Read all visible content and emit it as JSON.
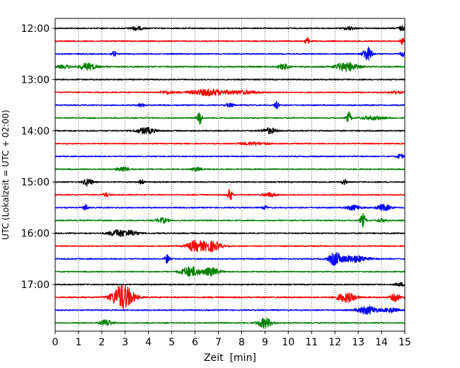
{
  "chart_data": {
    "type": "line",
    "title": "",
    "xlabel": "Zeit  [min]",
    "ylabel": "UTC (Lokalzeit = UTC + 02:00)",
    "xlim": [
      0,
      15
    ],
    "x_ticks": [
      "0",
      "1",
      "2",
      "3",
      "4",
      "5",
      "6",
      "7",
      "8",
      "9",
      "10",
      "11",
      "12",
      "13",
      "14",
      "15"
    ],
    "y_tick_labels": [
      "12:00",
      "13:00",
      "14:00",
      "15:00",
      "16:00",
      "17:00"
    ],
    "row_start": "12:00",
    "row_interval_min": 15,
    "grid": "vertical-dotted",
    "colors": [
      "#000000",
      "#ff0000",
      "#0000ff",
      "#008000"
    ],
    "rows": [
      {
        "t": "12:00",
        "color": "#000000",
        "amp": 0.1,
        "events": [
          [
            3.5,
            0.35,
            0.25
          ],
          [
            12.6,
            0.3,
            0.25
          ],
          [
            14.9,
            0.4,
            0.2
          ]
        ]
      },
      {
        "t": "12:15",
        "color": "#ff0000",
        "amp": 0.1,
        "events": [
          [
            10.8,
            0.6,
            0.1
          ],
          [
            14.9,
            0.6,
            0.1
          ]
        ]
      },
      {
        "t": "12:30",
        "color": "#0000ff",
        "amp": 0.1,
        "events": [
          [
            2.5,
            0.6,
            0.1
          ],
          [
            13.4,
            1.2,
            0.2
          ],
          [
            14.9,
            0.4,
            0.1
          ]
        ]
      },
      {
        "t": "12:45",
        "color": "#008000",
        "amp": 0.12,
        "events": [
          [
            0.4,
            0.25,
            0.3
          ],
          [
            1.4,
            0.6,
            0.35
          ],
          [
            9.8,
            0.5,
            0.2
          ],
          [
            12.5,
            0.8,
            0.45
          ]
        ]
      },
      {
        "t": "13:00",
        "color": "#000000",
        "amp": 0.1,
        "events": []
      },
      {
        "t": "13:15",
        "color": "#ff0000",
        "amp": 0.1,
        "events": [
          [
            4.8,
            0.25,
            0.3
          ],
          [
            6.6,
            0.55,
            0.8
          ],
          [
            8.1,
            0.3,
            0.6
          ],
          [
            14.6,
            0.2,
            0.3
          ]
        ]
      },
      {
        "t": "13:30",
        "color": "#0000ff",
        "amp": 0.1,
        "events": [
          [
            3.7,
            0.3,
            0.15
          ],
          [
            7.5,
            0.3,
            0.2
          ],
          [
            9.5,
            0.7,
            0.1
          ]
        ]
      },
      {
        "t": "13:45",
        "color": "#008000",
        "amp": 0.1,
        "events": [
          [
            6.2,
            1.2,
            0.1
          ],
          [
            12.6,
            1.0,
            0.1
          ],
          [
            13.6,
            0.3,
            0.5
          ]
        ]
      },
      {
        "t": "14:00",
        "color": "#000000",
        "amp": 0.1,
        "events": [
          [
            3.9,
            0.55,
            0.4
          ],
          [
            9.2,
            0.5,
            0.3
          ]
        ]
      },
      {
        "t": "14:15",
        "color": "#ff0000",
        "amp": 0.1,
        "events": [
          [
            8.5,
            0.25,
            0.6
          ]
        ]
      },
      {
        "t": "14:30",
        "color": "#0000ff",
        "amp": 0.1,
        "events": [
          [
            14.8,
            0.4,
            0.15
          ]
        ]
      },
      {
        "t": "14:45",
        "color": "#008000",
        "amp": 0.1,
        "events": [
          [
            2.9,
            0.45,
            0.25
          ],
          [
            6.1,
            0.3,
            0.2
          ]
        ]
      },
      {
        "t": "15:00",
        "color": "#000000",
        "amp": 0.1,
        "events": [
          [
            1.4,
            0.7,
            0.2
          ],
          [
            3.7,
            0.4,
            0.1
          ],
          [
            12.4,
            0.5,
            0.1
          ]
        ]
      },
      {
        "t": "15:15",
        "color": "#ff0000",
        "amp": 0.1,
        "events": [
          [
            2.2,
            0.3,
            0.15
          ],
          [
            7.5,
            1.1,
            0.1
          ],
          [
            9.2,
            0.35,
            0.3
          ]
        ]
      },
      {
        "t": "15:30",
        "color": "#0000ff",
        "amp": 0.1,
        "events": [
          [
            1.3,
            0.5,
            0.1
          ],
          [
            9.0,
            0.35,
            0.1
          ],
          [
            12.8,
            0.45,
            0.3
          ],
          [
            14.1,
            0.55,
            0.3
          ]
        ]
      },
      {
        "t": "15:45",
        "color": "#008000",
        "amp": 0.1,
        "events": [
          [
            4.6,
            0.45,
            0.25
          ],
          [
            13.2,
            1.3,
            0.1
          ],
          [
            14.0,
            0.3,
            0.2
          ]
        ]
      },
      {
        "t": "16:00",
        "color": "#000000",
        "amp": 0.1,
        "events": [
          [
            2.7,
            0.6,
            0.4
          ],
          [
            3.3,
            0.4,
            0.3
          ]
        ]
      },
      {
        "t": "16:15",
        "color": "#ff0000",
        "amp": 0.1,
        "events": [
          [
            6.0,
            0.9,
            0.35
          ],
          [
            6.7,
            0.9,
            0.4
          ]
        ]
      },
      {
        "t": "16:30",
        "color": "#0000ff",
        "amp": 0.1,
        "events": [
          [
            4.8,
            0.8,
            0.1
          ],
          [
            12.0,
            1.1,
            0.25
          ],
          [
            12.8,
            0.6,
            0.6
          ]
        ]
      },
      {
        "t": "16:45",
        "color": "#008000",
        "amp": 0.1,
        "events": [
          [
            5.8,
            0.9,
            0.4
          ],
          [
            6.7,
            0.7,
            0.35
          ]
        ]
      },
      {
        "t": "17:00",
        "color": "#000000",
        "amp": 0.1,
        "events": [
          [
            14.8,
            0.3,
            0.2
          ]
        ]
      },
      {
        "t": "17:15",
        "color": "#ff0000",
        "amp": 0.12,
        "events": [
          [
            2.9,
            2.2,
            0.45
          ],
          [
            12.5,
            0.8,
            0.4
          ],
          [
            14.6,
            0.7,
            0.2
          ]
        ]
      },
      {
        "t": "17:30",
        "color": "#0000ff",
        "amp": 0.1,
        "events": [
          [
            13.4,
            0.7,
            0.45
          ],
          [
            14.4,
            0.4,
            0.3
          ]
        ]
      },
      {
        "t": "17:45",
        "color": "#008000",
        "amp": 0.1,
        "events": [
          [
            2.2,
            0.55,
            0.25
          ],
          [
            9.0,
            0.9,
            0.3
          ]
        ]
      }
    ]
  }
}
